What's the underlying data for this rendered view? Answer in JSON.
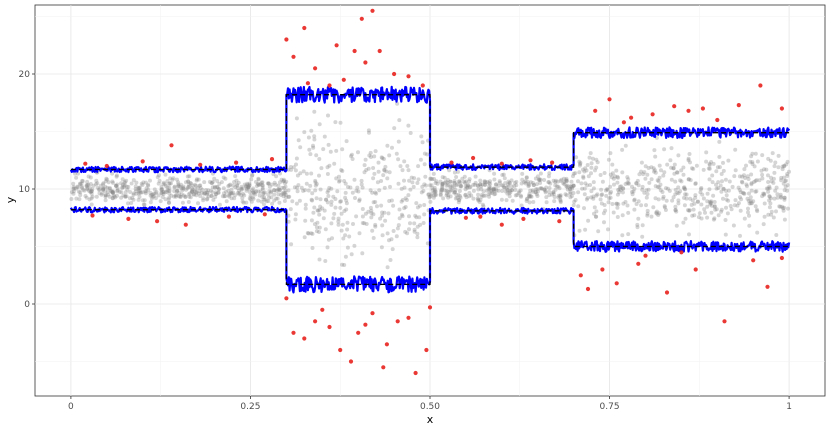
{
  "chart_data": {
    "type": "scatter",
    "title": "",
    "xlabel": "x",
    "ylabel": "y",
    "xlim": [
      -0.05,
      1.05
    ],
    "ylim": [
      -8,
      26
    ],
    "x_ticks": [
      {
        "value": 0,
        "label": "0"
      },
      {
        "value": 0.25,
        "label": "0.25"
      },
      {
        "value": 0.5,
        "label": "0.50"
      },
      {
        "value": 0.75,
        "label": "0.75"
      },
      {
        "value": 1,
        "label": "1"
      }
    ],
    "y_ticks": [
      {
        "value": 0,
        "label": "0"
      },
      {
        "value": 10,
        "label": "10"
      },
      {
        "value": 20,
        "label": "20"
      }
    ],
    "grid": true,
    "legend": "none",
    "segments": [
      {
        "x_start": 0.0,
        "x_end": 0.3,
        "lower": 8.2,
        "upper": 11.7
      },
      {
        "x_start": 0.3,
        "x_end": 0.5,
        "lower": 1.7,
        "upper": 18.2
      },
      {
        "x_start": 0.5,
        "x_end": 0.7,
        "lower": 8.1,
        "upper": 11.9
      },
      {
        "x_start": 0.7,
        "x_end": 1.0,
        "lower": 5.0,
        "upper": 14.9
      }
    ],
    "series": [
      {
        "role": "true-bounds",
        "style": "dashed",
        "color": "#000000"
      },
      {
        "role": "estimated-bounds",
        "style": "solid",
        "color": "#0000ff"
      },
      {
        "role": "points-inside",
        "color": "#808080"
      },
      {
        "role": "points-outside",
        "color": "#e8231f"
      }
    ],
    "outside_points": [
      [
        0.3,
        23.0
      ],
      [
        0.31,
        21.5
      ],
      [
        0.325,
        24.0
      ],
      [
        0.34,
        20.5
      ],
      [
        0.37,
        22.5
      ],
      [
        0.38,
        19.5
      ],
      [
        0.395,
        22.0
      ],
      [
        0.41,
        21.0
      ],
      [
        0.42,
        25.5
      ],
      [
        0.43,
        22.0
      ],
      [
        0.45,
        20.0
      ],
      [
        0.47,
        19.8
      ],
      [
        0.49,
        19.0
      ],
      [
        0.33,
        19.2
      ],
      [
        0.36,
        19.0
      ],
      [
        0.405,
        24.8
      ],
      [
        0.31,
        -2.5
      ],
      [
        0.325,
        -3.0
      ],
      [
        0.34,
        -1.5
      ],
      [
        0.36,
        -2.0
      ],
      [
        0.375,
        -4.0
      ],
      [
        0.39,
        -5.0
      ],
      [
        0.4,
        -2.5
      ],
      [
        0.41,
        -1.8
      ],
      [
        0.435,
        -5.5
      ],
      [
        0.44,
        -3.5
      ],
      [
        0.455,
        -1.5
      ],
      [
        0.48,
        -6.0
      ],
      [
        0.495,
        -4.0
      ],
      [
        0.35,
        -0.5
      ],
      [
        0.42,
        -0.8
      ],
      [
        0.47,
        -1.2
      ],
      [
        0.3,
        0.5
      ],
      [
        0.5,
        -0.3
      ],
      [
        0.02,
        12.2
      ],
      [
        0.05,
        12.0
      ],
      [
        0.1,
        12.4
      ],
      [
        0.14,
        13.8
      ],
      [
        0.18,
        12.1
      ],
      [
        0.23,
        12.3
      ],
      [
        0.28,
        12.6
      ],
      [
        0.03,
        7.7
      ],
      [
        0.08,
        7.4
      ],
      [
        0.12,
        7.2
      ],
      [
        0.16,
        6.9
      ],
      [
        0.22,
        7.6
      ],
      [
        0.27,
        7.8
      ],
      [
        0.53,
        12.3
      ],
      [
        0.56,
        12.7
      ],
      [
        0.6,
        12.2
      ],
      [
        0.64,
        12.5
      ],
      [
        0.67,
        12.3
      ],
      [
        0.55,
        7.5
      ],
      [
        0.6,
        6.9
      ],
      [
        0.63,
        7.4
      ],
      [
        0.68,
        7.2
      ],
      [
        0.57,
        7.6
      ],
      [
        0.71,
        2.5
      ],
      [
        0.72,
        1.3
      ],
      [
        0.74,
        3.0
      ],
      [
        0.76,
        1.8
      ],
      [
        0.79,
        3.5
      ],
      [
        0.83,
        1.0
      ],
      [
        0.87,
        3.0
      ],
      [
        0.91,
        -1.5
      ],
      [
        0.95,
        3.8
      ],
      [
        0.97,
        1.5
      ],
      [
        0.99,
        4.0
      ],
      [
        0.8,
        4.2
      ],
      [
        0.85,
        4.5
      ],
      [
        0.73,
        16.8
      ],
      [
        0.75,
        17.8
      ],
      [
        0.78,
        16.2
      ],
      [
        0.81,
        16.5
      ],
      [
        0.84,
        17.2
      ],
      [
        0.86,
        16.8
      ],
      [
        0.88,
        17.0
      ],
      [
        0.9,
        16.0
      ],
      [
        0.93,
        17.3
      ],
      [
        0.96,
        19.0
      ],
      [
        0.99,
        17.0
      ],
      [
        0.77,
        15.8
      ]
    ]
  }
}
